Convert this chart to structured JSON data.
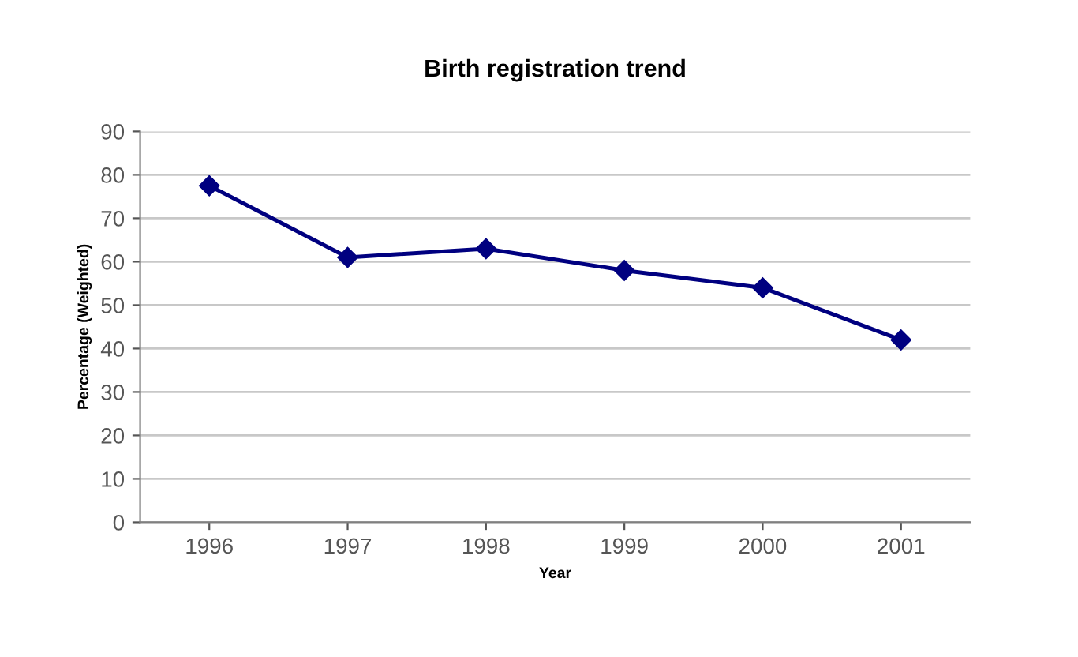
{
  "chart_data": {
    "type": "line",
    "title": "Birth registration trend",
    "xlabel": "Year",
    "ylabel": "Percentage (Weighted)",
    "categories": [
      "1996",
      "1997",
      "1998",
      "1999",
      "2000",
      "2001"
    ],
    "series": [
      {
        "color": "#000080",
        "values": [
          77.5,
          61,
          63,
          58,
          54,
          42
        ]
      }
    ],
    "ylim": [
      0,
      90
    ],
    "yticks": [
      0,
      10,
      20,
      30,
      40,
      50,
      60,
      70,
      80,
      90
    ],
    "grid": "y",
    "marker": "diamond",
    "line_style": "solid"
  }
}
